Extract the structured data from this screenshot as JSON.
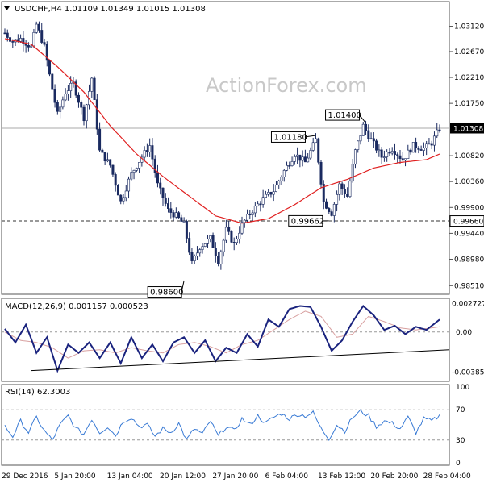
{
  "chart_data": [
    {
      "type": "candlestick",
      "header": "USDCHF,H4  1.01109 1.01349 1.01015 1.01308",
      "watermark": "ActionForex.com",
      "ylim": [
        0.984,
        1.035
      ],
      "y_ticks": [
        "1.03120",
        "1.02670",
        "1.02210",
        "1.01750",
        "1.00820",
        "1.00360",
        "0.99900",
        "0.99440",
        "0.98980",
        "0.98510"
      ],
      "y_tick_values": [
        1.0312,
        1.0267,
        1.0221,
        1.0175,
        1.0082,
        1.0036,
        0.999,
        0.9944,
        0.9898,
        0.9851
      ],
      "current_price": {
        "label": "1.01308",
        "value": 1.01308
      },
      "support_line": {
        "label": "0.99660",
        "value": 0.9966
      },
      "annotations": [
        {
          "label": "0.98600",
          "value": 0.986,
          "index": 68
        },
        {
          "label": "1.01180",
          "value": 1.0118,
          "index": 118
        },
        {
          "label": "0.99662",
          "value": 0.99662,
          "index": 123
        },
        {
          "label": "1.01400",
          "value": 1.014,
          "index": 137
        }
      ],
      "x_ticks": [
        "29 Dec 2016",
        "5 Jan 20:00",
        "13 Jan 04:00",
        "20 Jan 12:00",
        "27 Jan 20:00",
        "6 Feb 04:00",
        "13 Feb 12:00",
        "20 Feb 20:00",
        "28 Feb 04:00"
      ],
      "x_tick_index": [
        0,
        20,
        40,
        60,
        80,
        100,
        120,
        140,
        160
      ],
      "series": [
        {
          "name": "close",
          "anchors": [
            [
              0,
              1.03
            ],
            [
              3,
              1.0285
            ],
            [
              6,
              1.029
            ],
            [
              10,
              1.0275
            ],
            [
              12,
              1.0315
            ],
            [
              15,
              1.0275
            ],
            [
              18,
              1.02
            ],
            [
              20,
              1.0155
            ],
            [
              23,
              1.0195
            ],
            [
              26,
              1.021
            ],
            [
              30,
              1.015
            ],
            [
              33,
              1.022
            ],
            [
              36,
              1.009
            ],
            [
              40,
              1.0065
            ],
            [
              44,
              1.0
            ],
            [
              48,
              1.005
            ],
            [
              52,
              1.008
            ],
            [
              55,
              1.01
            ],
            [
              58,
              1.003
            ],
            [
              62,
              0.9985
            ],
            [
              65,
              0.9975
            ],
            [
              68,
              0.996
            ],
            [
              71,
              0.989
            ],
            [
              74,
              0.992
            ],
            [
              78,
              0.9935
            ],
            [
              81,
              0.9895
            ],
            [
              84,
              0.995
            ],
            [
              87,
              0.9925
            ],
            [
              90,
              0.996
            ],
            [
              94,
              0.9985
            ],
            [
              98,
              1.0005
            ],
            [
              102,
              1.002
            ],
            [
              106,
              1.0055
            ],
            [
              110,
              1.0085
            ],
            [
              114,
              1.007
            ],
            [
              118,
              1.011
            ],
            [
              121,
              1.0
            ],
            [
              124,
              0.998
            ],
            [
              127,
              1.003
            ],
            [
              130,
              1.001
            ],
            [
              133,
              1.009
            ],
            [
              136,
              1.0135
            ],
            [
              139,
              1.011
            ],
            [
              143,
              1.008
            ],
            [
              147,
              1.0095
            ],
            [
              151,
              1.0075
            ],
            [
              155,
              1.01
            ],
            [
              159,
              1.0095
            ],
            [
              162,
              1.0105
            ],
            [
              165,
              1.0131
            ]
          ]
        },
        {
          "name": "moving-average",
          "anchors": [
            [
              0,
              1.029
            ],
            [
              10,
              1.028
            ],
            [
              20,
              1.024
            ],
            [
              30,
              1.0195
            ],
            [
              40,
              1.0135
            ],
            [
              50,
              1.0085
            ],
            [
              60,
              1.0045
            ],
            [
              70,
              1.001
            ],
            [
              80,
              0.9975
            ],
            [
              90,
              0.9962
            ],
            [
              100,
              0.997
            ],
            [
              110,
              0.9995
            ],
            [
              120,
              1.0025
            ],
            [
              130,
              1.004
            ],
            [
              140,
              1.006
            ],
            [
              150,
              1.007
            ],
            [
              160,
              1.0075
            ],
            [
              165,
              1.0085
            ]
          ]
        }
      ]
    },
    {
      "type": "line",
      "title": "MACD(12,26,9) 0.001157 0.000523",
      "ylim": [
        -0.0045,
        0.003
      ],
      "y_ticks": [
        "0.002727",
        "0.00",
        "-0.003854"
      ],
      "y_tick_values": [
        0.002727,
        0.0,
        -0.003854
      ],
      "trendline": [
        [
          10,
          -0.0037
        ],
        [
          165,
          -0.0017
        ]
      ],
      "series": [
        {
          "name": "macd",
          "anchors": [
            [
              0,
              0.0003
            ],
            [
              4,
              -0.001
            ],
            [
              8,
              0.0007
            ],
            [
              12,
              -0.002
            ],
            [
              16,
              -0.0005
            ],
            [
              20,
              -0.0037
            ],
            [
              24,
              -0.0012
            ],
            [
              28,
              -0.002
            ],
            [
              32,
              -0.001
            ],
            [
              36,
              -0.0025
            ],
            [
              40,
              -0.001
            ],
            [
              44,
              -0.003
            ],
            [
              48,
              -0.0005
            ],
            [
              52,
              -0.0025
            ],
            [
              56,
              -0.0012
            ],
            [
              60,
              -0.0028
            ],
            [
              64,
              -0.001
            ],
            [
              68,
              -0.0005
            ],
            [
              72,
              -0.002
            ],
            [
              76,
              -0.0008
            ],
            [
              80,
              -0.0028
            ],
            [
              84,
              -0.0015
            ],
            [
              88,
              -0.002
            ],
            [
              92,
              -0.0002
            ],
            [
              96,
              -0.0014
            ],
            [
              100,
              0.0012
            ],
            [
              104,
              0.0005
            ],
            [
              108,
              0.0022
            ],
            [
              112,
              0.0025
            ],
            [
              116,
              0.0024
            ],
            [
              120,
              0.0005
            ],
            [
              124,
              -0.0018
            ],
            [
              128,
              -0.0008
            ],
            [
              132,
              0.001
            ],
            [
              136,
              0.0025
            ],
            [
              140,
              0.0016
            ],
            [
              144,
              0.0002
            ],
            [
              148,
              0.0006
            ],
            [
              152,
              -0.0002
            ],
            [
              156,
              0.0005
            ],
            [
              160,
              0.0002
            ],
            [
              165,
              0.0012
            ]
          ]
        },
        {
          "name": "signal",
          "anchors": [
            [
              0,
              0.0
            ],
            [
              6,
              -0.0008
            ],
            [
              12,
              -0.001
            ],
            [
              18,
              -0.0015
            ],
            [
              24,
              -0.0025
            ],
            [
              30,
              -0.0018
            ],
            [
              36,
              -0.0017
            ],
            [
              42,
              -0.002
            ],
            [
              48,
              -0.0015
            ],
            [
              54,
              -0.0018
            ],
            [
              60,
              -0.002
            ],
            [
              66,
              -0.0012
            ],
            [
              72,
              -0.001
            ],
            [
              78,
              -0.0014
            ],
            [
              84,
              -0.002
            ],
            [
              90,
              -0.0012
            ],
            [
              96,
              -0.0008
            ],
            [
              102,
              0.0002
            ],
            [
              108,
              0.0012
            ],
            [
              114,
              0.002
            ],
            [
              120,
              0.0015
            ],
            [
              126,
              -0.0005
            ],
            [
              132,
              -0.0002
            ],
            [
              138,
              0.0015
            ],
            [
              144,
              0.001
            ],
            [
              150,
              0.0004
            ],
            [
              156,
              0.0002
            ],
            [
              165,
              0.0005
            ]
          ]
        }
      ]
    },
    {
      "type": "line",
      "title": "RSI(14) 62.3003",
      "ylim": [
        0,
        100
      ],
      "y_ticks": [
        "100",
        "70",
        "30",
        "0"
      ],
      "y_tick_values": [
        100,
        70,
        30,
        0
      ],
      "series": [
        {
          "name": "rsi",
          "anchors": [
            [
              0,
              48
            ],
            [
              3,
              35
            ],
            [
              6,
              55
            ],
            [
              9,
              40
            ],
            [
              12,
              60
            ],
            [
              15,
              42
            ],
            [
              18,
              30
            ],
            [
              21,
              50
            ],
            [
              24,
              62
            ],
            [
              27,
              45
            ],
            [
              30,
              38
            ],
            [
              33,
              58
            ],
            [
              36,
              40
            ],
            [
              39,
              48
            ],
            [
              42,
              36
            ],
            [
              45,
              55
            ],
            [
              48,
              60
            ],
            [
              51,
              48
            ],
            [
              54,
              50
            ],
            [
              57,
              35
            ],
            [
              60,
              45
            ],
            [
              63,
              40
            ],
            [
              66,
              52
            ],
            [
              69,
              30
            ],
            [
              72,
              45
            ],
            [
              75,
              38
            ],
            [
              78,
              55
            ],
            [
              81,
              35
            ],
            [
              84,
              48
            ],
            [
              87,
              42
            ],
            [
              90,
              58
            ],
            [
              93,
              50
            ],
            [
              96,
              62
            ],
            [
              99,
              52
            ],
            [
              102,
              60
            ],
            [
              105,
              65
            ],
            [
              108,
              58
            ],
            [
              111,
              64
            ],
            [
              114,
              62
            ],
            [
              117,
              66
            ],
            [
              120,
              45
            ],
            [
              123,
              32
            ],
            [
              126,
              50
            ],
            [
              129,
              42
            ],
            [
              132,
              60
            ],
            [
              135,
              68
            ],
            [
              138,
              62
            ],
            [
              141,
              48
            ],
            [
              144,
              55
            ],
            [
              147,
              52
            ],
            [
              150,
              45
            ],
            [
              153,
              60
            ],
            [
              156,
              40
            ],
            [
              159,
              58
            ],
            [
              162,
              55
            ],
            [
              165,
              62
            ]
          ]
        }
      ]
    }
  ]
}
